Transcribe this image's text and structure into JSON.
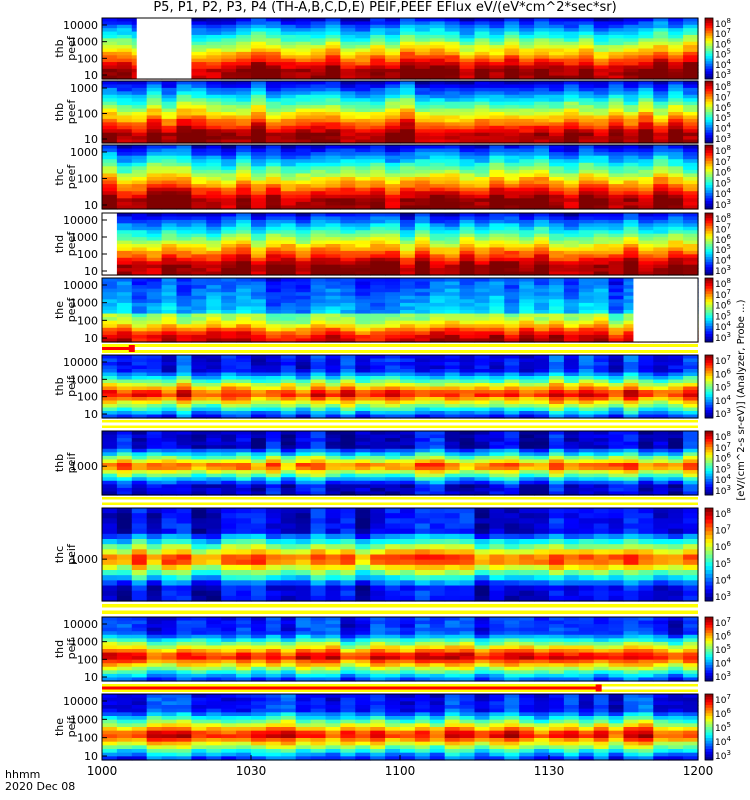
{
  "title": "P5, P1, P2, P3, P4 (TH-A,B,C,D,E) PEIF,PEEF EFlux eV/(eV*cm^2*sec*sr)",
  "time_axis": {
    "ticks": [
      "1000",
      "1030",
      "1100",
      "1130",
      "1200"
    ],
    "label_left": "hhmm",
    "date": "2020 Dec 08"
  },
  "colorbar_label": "[eV/(cm^2-s sr-eV)] (Analyzer, Probe ...)",
  "colors": {
    "flag_yellow": "#ffff00",
    "flag_red": "#ff0000",
    "frame": "#000000"
  },
  "chart_data": [
    {
      "type": "heatmap",
      "probe": "thb",
      "product": "peef",
      "ylabel": [
        "thb",
        "peef"
      ],
      "yticks": [
        "10000",
        "1000",
        "100",
        "10"
      ],
      "cbar_ticks": [
        "10^8",
        "10^7",
        "10^6",
        "10^5",
        "10^4",
        "10^3"
      ],
      "gaps": [
        {
          "x_start": "10:07",
          "x_end": "10:18"
        }
      ]
    },
    {
      "type": "heatmap",
      "probe": "thb",
      "product": "peef",
      "ylabel": [
        "thb",
        "peef"
      ],
      "yticks": [
        "1000",
        "100",
        "10"
      ],
      "cbar_ticks": [
        "10^8",
        "10^7",
        "10^6",
        "10^5",
        "10^4",
        "10^3"
      ],
      "gaps": []
    },
    {
      "type": "heatmap",
      "probe": "thc",
      "product": "peef",
      "ylabel": [
        "thc",
        "peef"
      ],
      "yticks": [
        "1000",
        "100",
        "10"
      ],
      "cbar_ticks": [
        "10^8",
        "10^7",
        "10^6",
        "10^5",
        "10^4",
        "10^3"
      ],
      "gaps": []
    },
    {
      "type": "heatmap",
      "probe": "thd",
      "product": "peef",
      "ylabel": [
        "thd",
        "peef"
      ],
      "yticks": [
        "10000",
        "1000",
        "100",
        "10"
      ],
      "cbar_ticks": [
        "10^8",
        "10^7",
        "10^6",
        "10^5",
        "10^4",
        "10^3"
      ],
      "gaps": [
        {
          "x_start": "10:00",
          "x_end": "10:03"
        }
      ]
    },
    {
      "type": "heatmap",
      "probe": "the",
      "product": "peef",
      "ylabel": [
        "the",
        "peef"
      ],
      "yticks": [
        "10000",
        "1000",
        "100",
        "10"
      ],
      "cbar_ticks": [
        "10^8",
        "10^7",
        "10^6",
        "10^5",
        "10^4",
        "10^3"
      ],
      "gaps": [
        {
          "x_start": "11:47",
          "x_end": "12:00"
        }
      ]
    },
    {
      "type": "flag",
      "red_until": "10:06"
    },
    {
      "type": "heatmap",
      "probe": "thb",
      "product": "peif",
      "ylabel": [
        "thb",
        "peif"
      ],
      "yticks": [
        "10000",
        "1000",
        "100",
        "10"
      ],
      "cbar_ticks": [
        "10^7",
        "10^6",
        "10^5",
        "10^4",
        "10^3"
      ],
      "gaps": []
    },
    {
      "type": "flag",
      "red_until": null
    },
    {
      "type": "heatmap",
      "probe": "thb",
      "product": "peif",
      "ylabel": [
        "thb",
        "peif"
      ],
      "yticks": [
        "1000"
      ],
      "cbar_ticks": [
        "10^8",
        "10^7",
        "10^6",
        "10^5",
        "10^4",
        "10^3"
      ],
      "gaps": []
    },
    {
      "type": "flag",
      "red_until": null
    },
    {
      "type": "heatmap",
      "probe": "thc",
      "product": "peif",
      "ylabel": [
        "thc",
        "peif"
      ],
      "yticks": [
        "1000"
      ],
      "cbar_ticks": [
        "10^8",
        "10^7",
        "10^6",
        "10^5",
        "10^4",
        "10^3"
      ],
      "gaps": []
    },
    {
      "type": "flag",
      "red_until": null
    },
    {
      "type": "heatmap",
      "probe": "thd",
      "product": "peif",
      "ylabel": [
        "thd",
        "peif"
      ],
      "yticks": [
        "10000",
        "1000",
        "100",
        "10"
      ],
      "cbar_ticks": [
        "10^7",
        "10^6",
        "10^5",
        "10^4",
        "10^3"
      ],
      "gaps": []
    },
    {
      "type": "flag",
      "red_until": "11:40"
    },
    {
      "type": "heatmap",
      "probe": "the",
      "product": "peif",
      "ylabel": [
        "the",
        "peif"
      ],
      "yticks": [
        "10000",
        "1000",
        "100",
        "10"
      ],
      "cbar_ticks": [
        "10^7",
        "10^6",
        "10^5",
        "10^4",
        "10^3"
      ],
      "gaps": []
    }
  ]
}
